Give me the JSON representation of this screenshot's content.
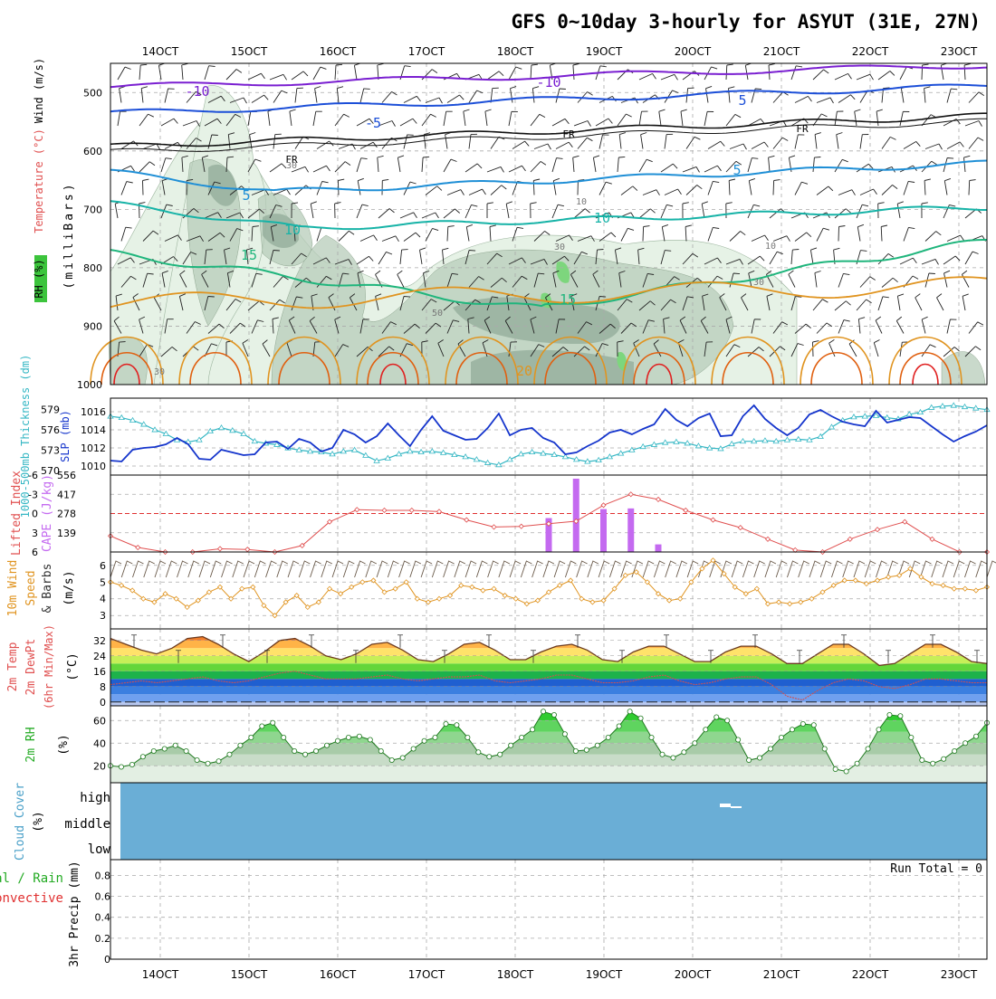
{
  "title": "GFS 0~10day 3-hourly for ASYUT (31E, 27N)",
  "colors": {
    "purple": "#7a1fd1",
    "blue": "#1c4fd8",
    "lightblue": "#1f8fd6",
    "teal": "#17b3a7",
    "green": "#1fb57c",
    "orange": "#e09420",
    "darkorange": "#e06010",
    "red": "#e02020",
    "cape": "#c46af0",
    "rhfill": "#e6f2e6",
    "rhmid": "#b7ccb9",
    "rhdark": "#8fa895",
    "cloud": "#6aaed6",
    "slp": "#1535cc",
    "thick": "#35b7c4"
  },
  "x_labels": [
    "14OCT",
    "15OCT",
    "16OCT",
    "17OCT",
    "18OCT",
    "19OCT",
    "20OCT",
    "21OCT",
    "22OCT",
    "23OCT"
  ],
  "panels": {
    "upper": {
      "ylabel_rh": "RH (%)",
      "ylabel_temp": "Temperature (°C)",
      "ylabel_wind": "Wind (m/s)",
      "ylabel_mb": "(milliBars)",
      "yticks": [
        "500",
        "600",
        "700",
        "800",
        "900",
        "1000"
      ],
      "contour_labels": {
        "m10a": "-10",
        "m10b": "-10",
        "m5a": "-5",
        "m5b": "5",
        "fr1": "FR",
        "fr2": "FR",
        "fr3": "FR",
        "p5a": "5",
        "p5b": "5",
        "p10a": "10",
        "p10b": "10",
        "p15a": "15",
        "p15b": "15",
        "p20": "20",
        "rh30a": "30",
        "rh30b": "30",
        "rh30c": "30",
        "rh30d": "30",
        "rh50": "50",
        "rh10a": "10",
        "rh10b": "10"
      }
    },
    "slp": {
      "ylabel_left": "1000-500mb Thickness (dm)",
      "ylabel_right": "SLP (mb)",
      "left_ticks": [
        "579",
        "576",
        "573",
        "570"
      ],
      "right_ticks": [
        "1016",
        "1014",
        "1012",
        "1010"
      ]
    },
    "li": {
      "ylabel_left": "Lifted Index",
      "ylabel_right": "CAPE (J/kg)",
      "left_ticks": [
        "-6",
        "-3",
        "0",
        "3",
        "6"
      ],
      "right_ticks": [
        "556",
        "417",
        "278",
        "139"
      ]
    },
    "wind10": {
      "ylabel1": "10m Wind",
      "ylabel2": "Speed",
      "ylabel3": "& Barbs",
      "unit": "(m/s)",
      "yticks": [
        "6",
        "5",
        "4",
        "3"
      ]
    },
    "temp2m": {
      "ylabel1": "2m Temp",
      "ylabel2": "2m DewPt",
      "ylabel3": "(6hr Min/Max)",
      "unit": "(°C)",
      "yticks": [
        "32",
        "24",
        "16",
        "8",
        "0"
      ]
    },
    "rh2m": {
      "ylabel": "2m RH",
      "unit": "(%)",
      "yticks": [
        "60",
        "40",
        "20"
      ]
    },
    "cloud": {
      "ylabel": "Cloud Cover",
      "unit": "(%)",
      "levels": [
        "high",
        "middle",
        "low"
      ]
    },
    "precip": {
      "ylabel1": "Total / Rain",
      "ylabel2": "Convective",
      "ylabel3": "3hr Precip (mm)",
      "run_total": "Run Total = 0",
      "yticks": [
        "0.8",
        "0.6",
        "0.4",
        "0.2",
        "0"
      ]
    }
  },
  "chart_data": [
    {
      "type": "line",
      "title": "GFS 0~10day 3-hourly for ASYUT (31E, 27N)",
      "panel": "1000-500mb Thickness / SLP",
      "series": [
        {
          "name": "SLP (mb)",
          "values": [
            1010.6,
            1010.5,
            1011.8,
            1012.0,
            1012.1,
            1012.4,
            1013.1,
            1012.4,
            1010.8,
            1010.7,
            1011.8,
            1011.5,
            1011.2,
            1011.3,
            1012.6,
            1012.7,
            1011.9,
            1013.0,
            1012.6,
            1011.6,
            1012.0,
            1014.0,
            1013.5,
            1012.6,
            1013.3,
            1014.7,
            1013.4,
            1012.2,
            1014.0,
            1015.5,
            1013.9,
            1013.4,
            1012.9,
            1013.0,
            1014.2,
            1015.8,
            1013.4,
            1014.0,
            1014.2,
            1013.1,
            1012.6,
            1011.3,
            1011.5,
            1012.2,
            1012.8,
            1013.7,
            1014.0,
            1013.5,
            1014.1,
            1014.6,
            1016.3,
            1015.1,
            1014.4,
            1015.3,
            1015.8,
            1013.3,
            1013.4,
            1015.5,
            1016.7,
            1015.2,
            1014.2,
            1013.4,
            1014.2,
            1015.7,
            1016.2,
            1015.5,
            1014.9,
            1014.6,
            1014.4,
            1016.1,
            1014.8,
            1015.1,
            1015.4,
            1015.3,
            1014.4,
            1013.5,
            1012.7,
            1013.3,
            1013.8,
            1014.5
          ]
        },
        {
          "name": "1000-500mb Thickness (dm)",
          "values": [
            578.0,
            577.8,
            577.4,
            576.8,
            576.0,
            575.4,
            574.5,
            574.2,
            574.5,
            575.8,
            576.3,
            575.9,
            575.4,
            574.3,
            574.0,
            573.8,
            573.3,
            573.0,
            572.8,
            572.7,
            572.4,
            572.8,
            573.0,
            572.2,
            571.4,
            571.8,
            572.4,
            572.8,
            572.7,
            572.8,
            572.6,
            572.3,
            572.0,
            571.6,
            571.1,
            570.8,
            571.6,
            572.4,
            572.7,
            572.5,
            572.3,
            572.0,
            571.6,
            571.3,
            571.5,
            572.0,
            572.5,
            573.0,
            573.5,
            573.8,
            574.1,
            574.2,
            574.0,
            573.6,
            573.3,
            573.2,
            573.9,
            574.3,
            574.3,
            574.4,
            574.3,
            574.5,
            574.6,
            574.5,
            575.0,
            576.4,
            577.4,
            577.9,
            578.0,
            578.1,
            577.8,
            577.6,
            578.3,
            578.6,
            579.3,
            579.5,
            579.6,
            579.4,
            579.2,
            579.0
          ]
        }
      ]
    },
    {
      "type": "line",
      "panel": "Lifted Index / CAPE",
      "series": [
        {
          "name": "Lifted Index",
          "values": [
            3.5,
            5.3,
            6,
            6,
            5.5,
            5.6,
            6,
            5,
            1.3,
            -0.6,
            -0.5,
            -0.5,
            -0.3,
            1.0,
            2.1,
            2.0,
            1.6,
            1.2,
            -1.3,
            -3.0,
            -2.2,
            -0.5,
            1.0,
            2.2,
            4.0,
            5.7,
            6,
            4.0,
            2.5,
            1.3,
            4.0,
            6,
            6
          ]
        },
        {
          "name": "CAPE (J/kg)",
          "values": [
            0,
            0,
            0,
            0,
            0,
            0,
            0,
            0,
            0,
            0,
            0,
            0,
            0,
            0,
            0,
            0,
            245,
            530,
            310,
            315,
            55,
            0,
            0,
            0,
            0,
            0,
            0,
            0,
            0,
            0,
            0,
            0,
            0
          ]
        }
      ]
    },
    {
      "type": "line",
      "panel": "10m Wind Speed",
      "series": [
        {
          "name": "10m Wind Speed (m/s)",
          "values": [
            5.0,
            4.8,
            4.5,
            4.0,
            3.8,
            4.3,
            4.0,
            3.5,
            3.9,
            4.4,
            4.7,
            4.0,
            4.6,
            4.7,
            3.6,
            3.0,
            3.8,
            4.2,
            3.5,
            3.8,
            4.6,
            4.3,
            4.7,
            5.0,
            5.1,
            4.4,
            4.6,
            5.0,
            4.0,
            3.8,
            4.0,
            4.2,
            4.8,
            4.7,
            4.5,
            4.6,
            4.2,
            4.0,
            3.7,
            3.9,
            4.4,
            4.8,
            5.1,
            4.0,
            3.8,
            3.9,
            4.6,
            5.4,
            5.6,
            5.0,
            4.3,
            3.9,
            4.0,
            5.0,
            5.8,
            6.3,
            5.5,
            4.7,
            4.3,
            4.6,
            3.7,
            3.8,
            3.7,
            3.8,
            4.0,
            4.4,
            4.8,
            5.1,
            5.1,
            4.9,
            5.1,
            5.3,
            5.4,
            5.8,
            5.3,
            4.9,
            4.8,
            4.6,
            4.6,
            4.5,
            4.7
          ]
        }
      ]
    },
    {
      "type": "line",
      "panel": "2m Temp / 2m DewPt",
      "series": [
        {
          "name": "2m Temp (°C)",
          "values": [
            33,
            30,
            27,
            25,
            28,
            33,
            34,
            30,
            25,
            21,
            26,
            32,
            33,
            29,
            24,
            22,
            25,
            30,
            31,
            27,
            22,
            21,
            25,
            30,
            31,
            27,
            22,
            22,
            26,
            29,
            30,
            27,
            22,
            21,
            26,
            29,
            29,
            25,
            21,
            21,
            26,
            29,
            29,
            25,
            20,
            20,
            25,
            30,
            30,
            25,
            19,
            20,
            25,
            30,
            30,
            26,
            21,
            20
          ]
        },
        {
          "name": "2m DewPt (°C)",
          "values": [
            9,
            10,
            11,
            10,
            11,
            12,
            13,
            11,
            10,
            11,
            13,
            15,
            16,
            14,
            12,
            12,
            12,
            13,
            14,
            12,
            11,
            12,
            13,
            13,
            14,
            11,
            10,
            11,
            12,
            14,
            14,
            12,
            10,
            10,
            11,
            13,
            14,
            11,
            9,
            10,
            12,
            13,
            13,
            9,
            3,
            1,
            6,
            10,
            12,
            11,
            8,
            7,
            9,
            12,
            12,
            11,
            10,
            10
          ]
        }
      ]
    },
    {
      "type": "area",
      "panel": "2m RH",
      "series": [
        {
          "name": "2m RH (%)",
          "values": [
            20,
            19,
            21,
            28,
            33,
            35,
            38,
            33,
            25,
            22,
            24,
            30,
            38,
            45,
            55,
            58,
            45,
            33,
            30,
            33,
            38,
            42,
            45,
            46,
            43,
            33,
            25,
            27,
            35,
            42,
            45,
            57,
            56,
            45,
            32,
            28,
            30,
            38,
            45,
            52,
            68,
            65,
            48,
            33,
            34,
            38,
            45,
            55,
            68,
            62,
            45,
            30,
            27,
            32,
            40,
            52,
            63,
            60,
            43,
            25,
            27,
            35,
            45,
            52,
            57,
            56,
            35,
            17,
            15,
            22,
            35,
            52,
            65,
            64,
            45,
            25,
            22,
            26,
            33,
            40,
            46,
            58
          ]
        }
      ]
    }
  ]
}
